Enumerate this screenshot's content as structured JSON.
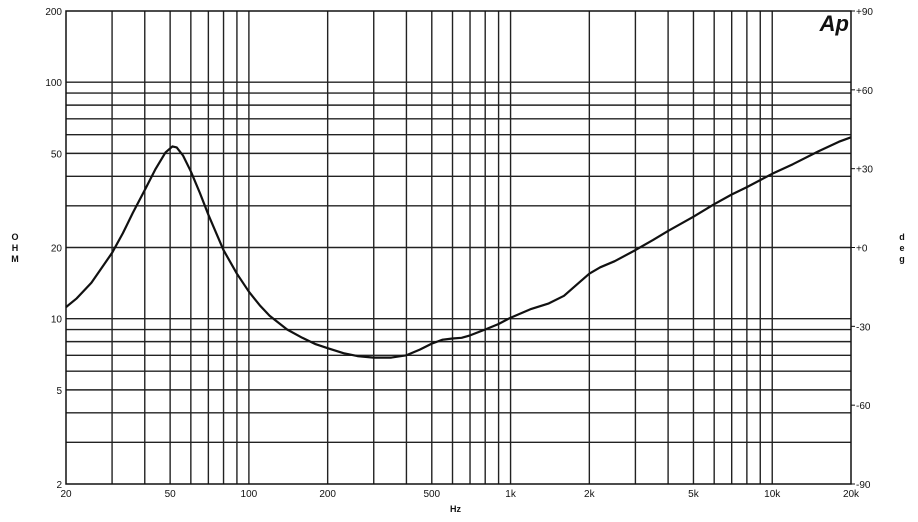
{
  "chart_data": {
    "type": "line",
    "title": "",
    "logo_text": "Ap",
    "xlabel": "Hz",
    "ylabel_left": "OHM",
    "ylabel_right": "deg",
    "x_scale": "log",
    "y_scale": "log",
    "xlim": [
      20,
      20000
    ],
    "ylim": [
      2,
      200
    ],
    "y2lim": [
      -90,
      90
    ],
    "grid": true,
    "x_ticks": [
      {
        "value": 20,
        "label": "20"
      },
      {
        "value": 50,
        "label": "50"
      },
      {
        "value": 100,
        "label": "100"
      },
      {
        "value": 200,
        "label": "200"
      },
      {
        "value": 500,
        "label": "500"
      },
      {
        "value": 1000,
        "label": "1k"
      },
      {
        "value": 2000,
        "label": "2k"
      },
      {
        "value": 5000,
        "label": "5k"
      },
      {
        "value": 10000,
        "label": "10k"
      },
      {
        "value": 20000,
        "label": "20k"
      }
    ],
    "y_ticks": [
      {
        "value": 2,
        "label": "2"
      },
      {
        "value": 5,
        "label": "5"
      },
      {
        "value": 10,
        "label": "10"
      },
      {
        "value": 20,
        "label": "20"
      },
      {
        "value": 50,
        "label": "50"
      },
      {
        "value": 100,
        "label": "100"
      },
      {
        "value": 200,
        "label": "200"
      }
    ],
    "y2_ticks": [
      {
        "value": 90,
        "label": "+90"
      },
      {
        "value": 60,
        "label": "+60"
      },
      {
        "value": 30,
        "label": "+30"
      },
      {
        "value": 0,
        "label": "+0"
      },
      {
        "value": -30,
        "label": "-30"
      },
      {
        "value": -60,
        "label": "-60"
      },
      {
        "value": -90,
        "label": "-90"
      }
    ],
    "series": [
      {
        "color": "#111111",
        "points": [
          [
            20,
            11.2
          ],
          [
            22,
            12.2
          ],
          [
            25,
            14.2
          ],
          [
            28,
            17.0
          ],
          [
            30,
            19.0
          ],
          [
            33,
            23.0
          ],
          [
            36,
            28.0
          ],
          [
            40,
            35.0
          ],
          [
            44,
            43.0
          ],
          [
            48,
            50.5
          ],
          [
            51,
            53.5
          ],
          [
            53,
            53.0
          ],
          [
            56,
            49.0
          ],
          [
            60,
            42.0
          ],
          [
            65,
            34.0
          ],
          [
            70,
            27.5
          ],
          [
            75,
            23.0
          ],
          [
            80,
            19.5
          ],
          [
            90,
            15.5
          ],
          [
            100,
            13.0
          ],
          [
            110,
            11.4
          ],
          [
            120,
            10.3
          ],
          [
            140,
            9.0
          ],
          [
            160,
            8.3
          ],
          [
            180,
            7.8
          ],
          [
            200,
            7.5
          ],
          [
            230,
            7.15
          ],
          [
            260,
            6.95
          ],
          [
            300,
            6.85
          ],
          [
            350,
            6.85
          ],
          [
            400,
            7.0
          ],
          [
            450,
            7.4
          ],
          [
            500,
            7.85
          ],
          [
            550,
            8.15
          ],
          [
            600,
            8.25
          ],
          [
            650,
            8.3
          ],
          [
            700,
            8.5
          ],
          [
            800,
            9.0
          ],
          [
            900,
            9.5
          ],
          [
            1000,
            10.1
          ],
          [
            1200,
            11.0
          ],
          [
            1400,
            11.6
          ],
          [
            1600,
            12.5
          ],
          [
            1800,
            14.0
          ],
          [
            2000,
            15.5
          ],
          [
            2200,
            16.5
          ],
          [
            2500,
            17.5
          ],
          [
            3000,
            19.5
          ],
          [
            3500,
            21.5
          ],
          [
            4000,
            23.5
          ],
          [
            5000,
            27.0
          ],
          [
            6000,
            30.5
          ],
          [
            7000,
            33.5
          ],
          [
            8000,
            36.0
          ],
          [
            10000,
            41.0
          ],
          [
            12000,
            45.0
          ],
          [
            15000,
            51.0
          ],
          [
            18000,
            56.0
          ],
          [
            20000,
            58.5
          ]
        ]
      }
    ]
  }
}
